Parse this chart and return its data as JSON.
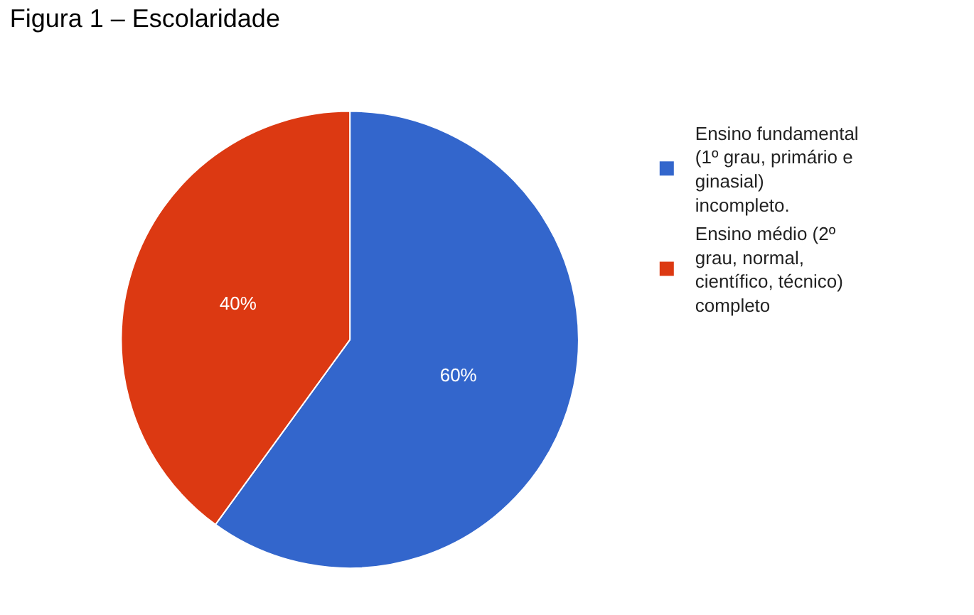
{
  "chart_data": {
    "type": "pie",
    "title": "Figura 1 – Escolaridade",
    "categories": [
      "Ensino fundamental (1º grau, primário e ginasial) incompleto.",
      "Ensino médio (2º grau, normal, científico, técnico) completo"
    ],
    "values": [
      60,
      40
    ],
    "colors": [
      "#3366cc",
      "#dc3912"
    ],
    "value_labels": [
      "60%",
      "40%"
    ],
    "legend": "top right"
  }
}
